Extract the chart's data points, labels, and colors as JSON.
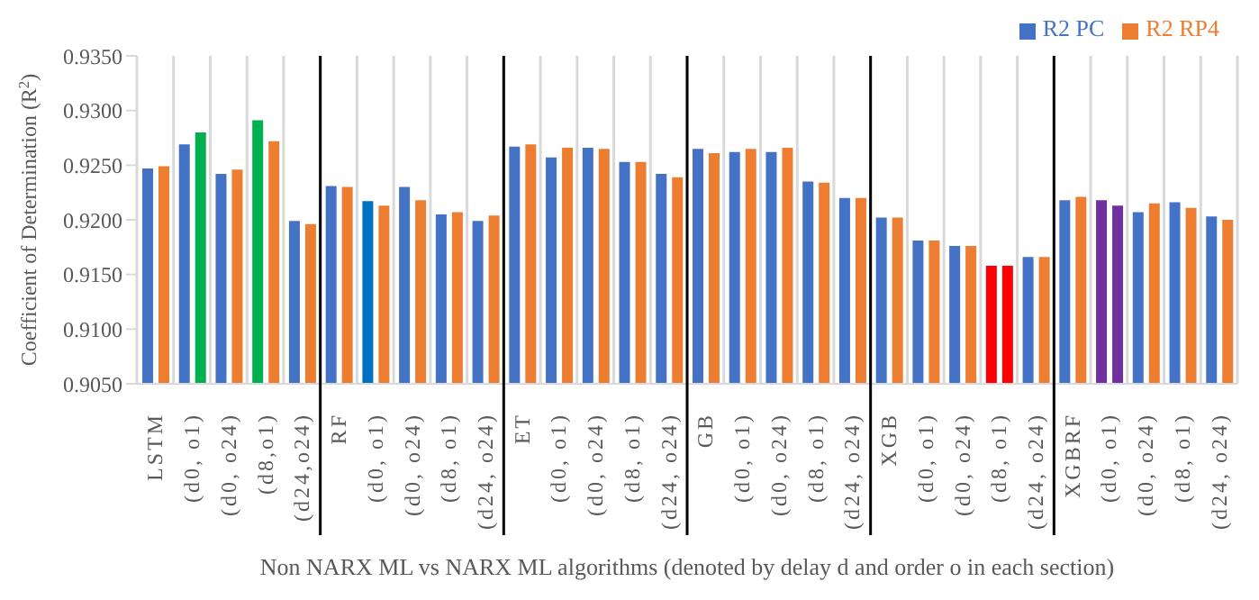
{
  "chart_data": {
    "type": "bar",
    "xlabel": "Non NARX ML vs NARX ML algorithms (denoted by delay d and order o in each section)",
    "ylabel": "Coefficient of Determination (R$^{2}$)",
    "categories": [
      "LSTM",
      "(d0, o1)",
      "(d0, o24)",
      "(d8,o1)",
      "(d24,o24)",
      "RF",
      "(d0, o1)",
      "(d0, o24)",
      "(d8, o1)",
      "(d24, o24)",
      "ET",
      "(d0, o1)",
      "(d0, o24)",
      "(d8, o1)",
      "(d24, o24)",
      "GB",
      "(d0, o1)",
      "(d0, o24)",
      "(d8, o1)",
      "(d24, o24)",
      "XGB",
      "(d0, o1)",
      "(d0, o24)",
      "(d8, o1)",
      "(d24, o24)",
      "XGBRF",
      "(d0, o1)",
      "(d0, o24)",
      "(d8, o1)",
      "(d24, o24)"
    ],
    "series": [
      {
        "name": "R2 PC",
        "color": "#4472c4",
        "values": [
          0.9247,
          0.9269,
          0.9242,
          0.9291,
          0.9199,
          0.9231,
          0.9217,
          0.923,
          0.9205,
          0.9199,
          0.9267,
          0.9257,
          0.9266,
          0.9253,
          0.9242,
          0.9265,
          0.9262,
          0.9262,
          0.9235,
          0.922,
          0.9202,
          0.9181,
          0.9176,
          0.9158,
          0.9166,
          0.9218,
          0.9218,
          0.9207,
          0.9216,
          0.9203
        ],
        "colors": [
          "#4472c4",
          "#4472c4",
          "#4472c4",
          "#00b050",
          "#4472c4",
          "#4472c4",
          "#0070c0",
          "#4472c4",
          "#4472c4",
          "#4472c4",
          "#4472c4",
          "#4472c4",
          "#4472c4",
          "#4472c4",
          "#4472c4",
          "#4472c4",
          "#4472c4",
          "#4472c4",
          "#4472c4",
          "#4472c4",
          "#4472c4",
          "#4472c4",
          "#4472c4",
          "#ff0000",
          "#4472c4",
          "#4472c4",
          "#7030a0",
          "#4472c4",
          "#4472c4",
          "#4472c4"
        ]
      },
      {
        "name": "R2 RP4",
        "color": "#ed7d31",
        "values": [
          0.9249,
          0.928,
          0.9246,
          0.9272,
          0.9196,
          0.923,
          0.9213,
          0.9218,
          0.9207,
          0.9204,
          0.9269,
          0.9266,
          0.9265,
          0.9253,
          0.9239,
          0.9261,
          0.9265,
          0.9266,
          0.9234,
          0.922,
          0.9202,
          0.9181,
          0.9176,
          0.9158,
          0.9166,
          0.9221,
          0.9213,
          0.9215,
          0.9211,
          0.92
        ],
        "colors": [
          "#ed7d31",
          "#00b050",
          "#ed7d31",
          "#ed7d31",
          "#ed7d31",
          "#ed7d31",
          "#ed7d31",
          "#ed7d31",
          "#ed7d31",
          "#ed7d31",
          "#ed7d31",
          "#ed7d31",
          "#ed7d31",
          "#ed7d31",
          "#ed7d31",
          "#ed7d31",
          "#ed7d31",
          "#ed7d31",
          "#ed7d31",
          "#ed7d31",
          "#ed7d31",
          "#ed7d31",
          "#ed7d31",
          "#ff0000",
          "#ed7d31",
          "#ed7d31",
          "#7030a0",
          "#ed7d31",
          "#ed7d31",
          "#ed7d31"
        ]
      }
    ],
    "ylim": [
      0.905,
      0.935
    ],
    "yticks": [
      {
        "value": 0.905,
        "label": "0.9050"
      },
      {
        "value": 0.91,
        "label": "0.9100"
      },
      {
        "value": 0.915,
        "label": "0.9150"
      },
      {
        "value": 0.92,
        "label": "0.9200"
      },
      {
        "value": 0.925,
        "label": "0.9250"
      },
      {
        "value": 0.93,
        "label": "0.9300"
      },
      {
        "value": 0.935,
        "label": "0.9350"
      }
    ],
    "grid": "x",
    "legend": "top right"
  }
}
